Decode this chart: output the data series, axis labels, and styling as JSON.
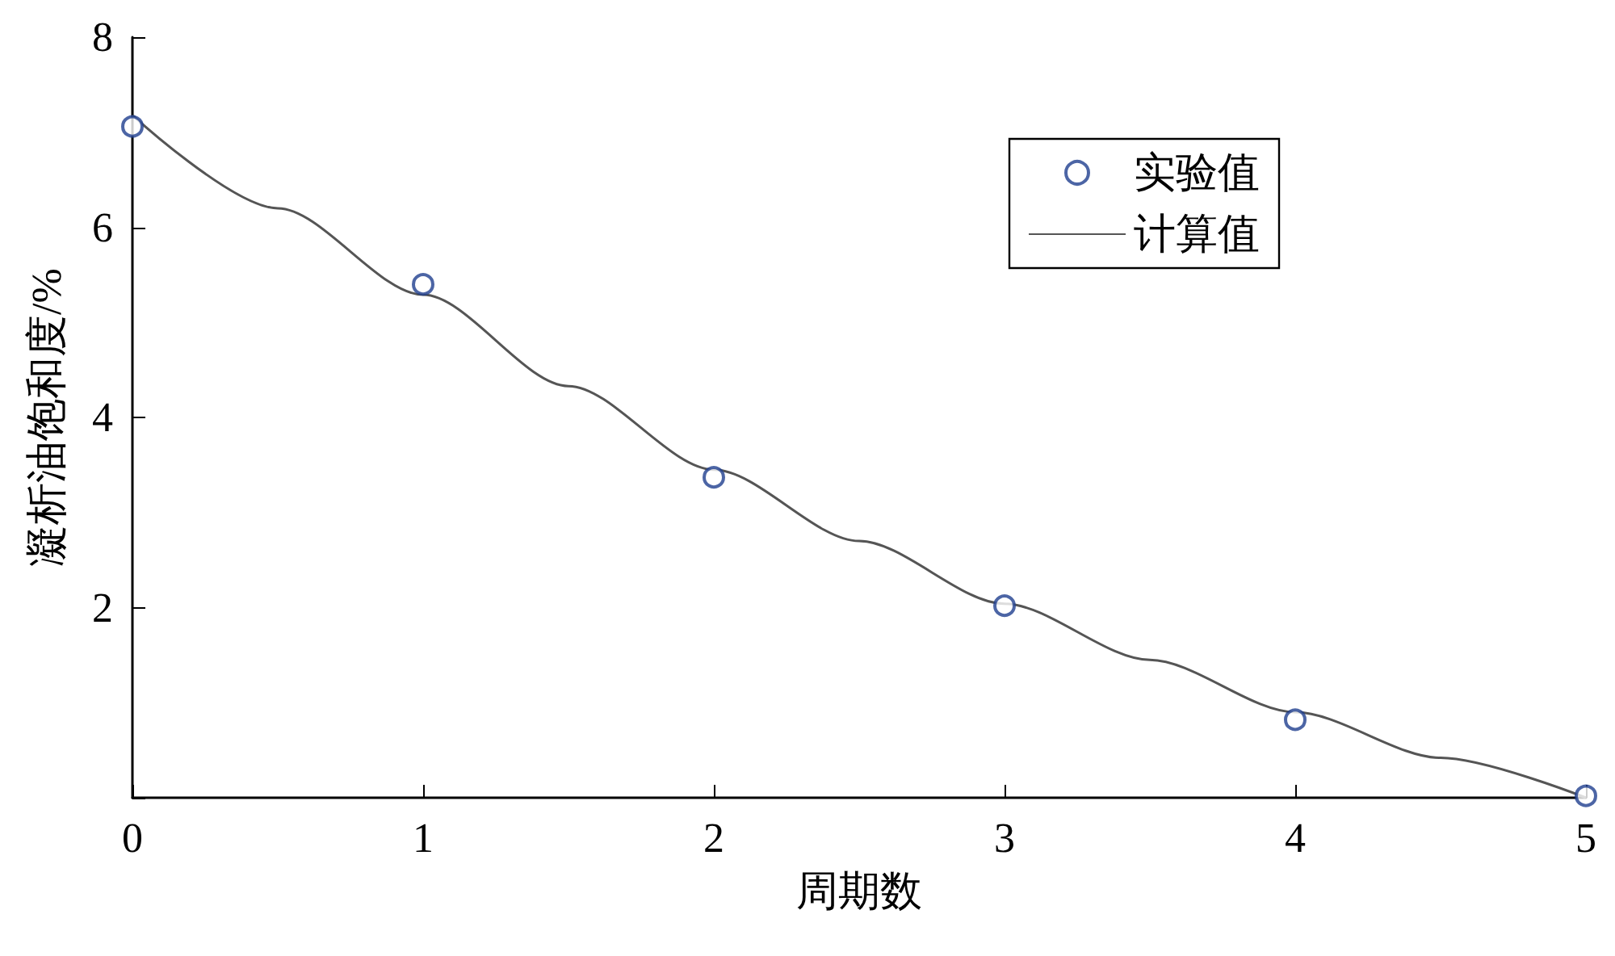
{
  "chart_data": {
    "type": "scatter",
    "xlabel": "周期数",
    "ylabel": "凝析油饱和度/%",
    "xlim": [
      0,
      5
    ],
    "xticks": [
      0,
      1,
      2,
      3,
      4,
      5
    ],
    "ylim": [
      0,
      8
    ],
    "yticks": [
      {
        "value": 0,
        "label": null
      },
      2,
      4,
      6,
      8
    ],
    "grid": false,
    "legend": "top right",
    "series": [
      {
        "name": "实验值",
        "marker": "circle",
        "color": "#1f3f8f",
        "x": [
          0,
          1,
          2,
          3,
          4,
          5
        ],
        "values": [
          7.06,
          5.4,
          3.37,
          2.02,
          0.82,
          0.02
        ]
      },
      {
        "name": "计算值",
        "type": "line",
        "marker": "none",
        "line_style": "solid",
        "color": "#555555",
        "x": [
          0,
          0.5,
          1,
          1.5,
          2,
          2.5,
          3,
          3.5,
          4,
          4.5,
          5
        ],
        "values": [
          7.18,
          6.2,
          5.29,
          4.33,
          3.45,
          2.7,
          2.04,
          1.45,
          0.9,
          0.42,
          0
        ]
      }
    ]
  }
}
